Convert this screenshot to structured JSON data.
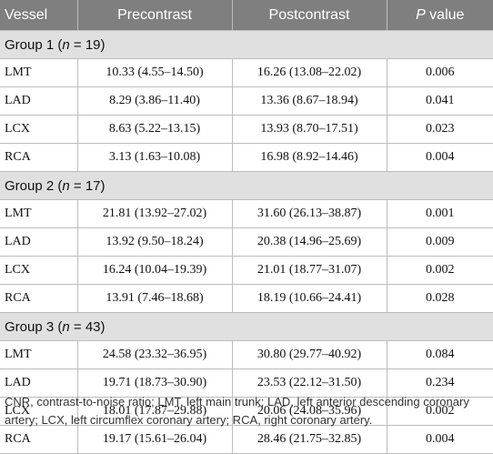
{
  "header": {
    "vessel": "Vessel",
    "precontrast": "Precontrast",
    "postcontrast": "Postcontrast",
    "p_label": "P",
    "p_suffix": " value"
  },
  "groups": [
    {
      "label_prefix": "Group 1 (",
      "n_symbol": "n",
      "label_suffix": " = 19)",
      "rows": [
        {
          "vessel": "LMT",
          "pre": "10.33 (4.55–14.50)",
          "post": "16.26 (13.08–22.02)",
          "p": "0.006"
        },
        {
          "vessel": "LAD",
          "pre": "8.29 (3.86–11.40)",
          "post": "13.36 (8.67–18.94)",
          "p": "0.041"
        },
        {
          "vessel": "LCX",
          "pre": "8.63 (5.22–13.15)",
          "post": "13.93 (8.70–17.51)",
          "p": "0.023"
        },
        {
          "vessel": "RCA",
          "pre": "3.13 (1.63–10.08)",
          "post": "16.98 (8.92–14.46)",
          "p": "0.004"
        }
      ]
    },
    {
      "label_prefix": "Group 2 (",
      "n_symbol": "n",
      "label_suffix": " = 17)",
      "rows": [
        {
          "vessel": "LMT",
          "pre": "21.81 (13.92–27.02)",
          "post": "31.60 (26.13–38.87)",
          "p": "0.001"
        },
        {
          "vessel": "LAD",
          "pre": "13.92 (9.50–18.24)",
          "post": "20.38 (14.96–25.69)",
          "p": "0.009"
        },
        {
          "vessel": "LCX",
          "pre": "16.24 (10.04–19.39)",
          "post": "21.01 (18.77–31.07)",
          "p": "0.002"
        },
        {
          "vessel": "RCA",
          "pre": "13.91 (7.46–18.68)",
          "post": "18.19 (10.66–24.41)",
          "p": "0.028"
        }
      ]
    },
    {
      "label_prefix": "Group 3 (",
      "n_symbol": "n",
      "label_suffix": " = 43)",
      "rows": [
        {
          "vessel": "LMT",
          "pre": "24.58 (23.32–36.95)",
          "post": "30.80 (29.77–40.92)",
          "p": "0.084"
        },
        {
          "vessel": "LAD",
          "pre": "19.71 (18.73–30.90)",
          "post": "23.53 (22.12–31.50)",
          "p": "0.234"
        },
        {
          "vessel": "LCX",
          "pre": "18.01 (17.87–29.88)",
          "post": "20.06 (24.08–35.96)",
          "p": "0.002"
        },
        {
          "vessel": "RCA",
          "pre": "19.17 (15.61–26.04)",
          "post": "28.46 (21.75–32.85)",
          "p": "0.004"
        }
      ]
    }
  ],
  "footnote": "CNR, contrast-to-noise ratio; LMT, left main trunk; LAD, left anterior descending coronary artery; LCX, left circumflex coronary artery; RCA, right coronary artery."
}
